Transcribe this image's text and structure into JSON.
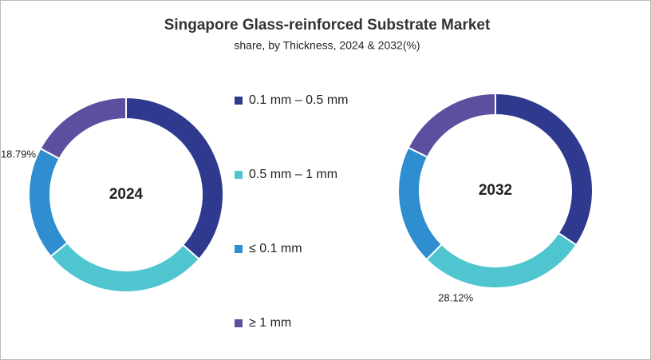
{
  "title": "Singapore Glass-reinforced Substrate Market",
  "subtitle": "share, by Thickness, 2024 & 2032(%)",
  "categories": [
    "0.1 mm – 0.5 mm",
    "0.5 mm – 1 mm",
    "≤ 0.1 mm",
    "≥ 1 mm"
  ],
  "colors": [
    "#2f3a8f",
    "#4fc5d0",
    "#2e8ecf",
    "#5c4f9f"
  ],
  "chart_data": [
    {
      "type": "pie",
      "title": "2024",
      "values": [
        36.5,
        27.6,
        18.79,
        17.11
      ],
      "value_labels": [
        null,
        null,
        "18.79%",
        null
      ]
    },
    {
      "type": "pie",
      "title": "2032",
      "values": [
        34.4,
        28.12,
        19.8,
        17.68
      ],
      "value_labels": [
        null,
        "28.12%",
        null,
        null
      ]
    }
  ]
}
